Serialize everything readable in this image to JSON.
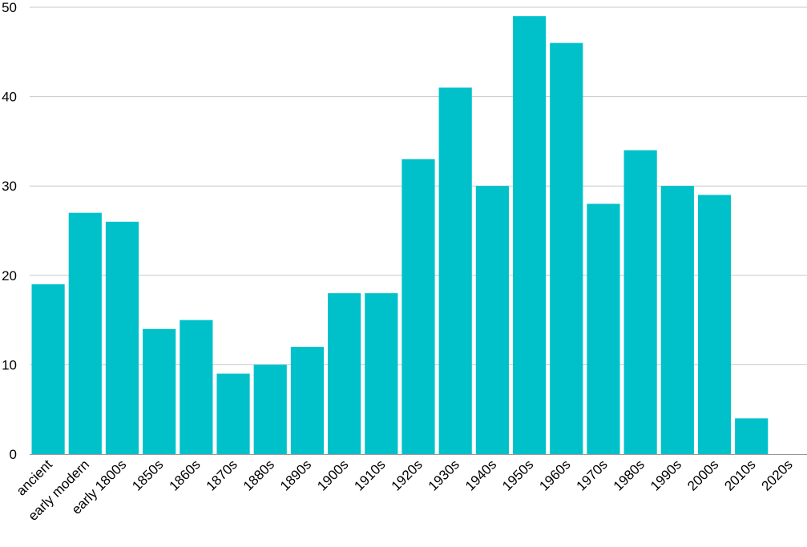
{
  "chart_data": {
    "type": "bar",
    "title": "",
    "xlabel": "",
    "ylabel": "",
    "ylim": [
      0,
      50
    ],
    "yticks": [
      0,
      10,
      20,
      30,
      40,
      50
    ],
    "grid": true,
    "bar_color": "#00C1CA",
    "categories": [
      "ancient",
      "early modern",
      "early 1800s",
      "1850s",
      "1860s",
      "1870s",
      "1880s",
      "1890s",
      "1900s",
      "1910s",
      "1920s",
      "1930s",
      "1940s",
      "1950s",
      "1960s",
      "1970s",
      "1980s",
      "1990s",
      "2000s",
      "2010s",
      "2020s"
    ],
    "values": [
      19,
      27,
      26,
      14,
      15,
      9,
      10,
      12,
      18,
      18,
      33,
      41,
      30,
      49,
      46,
      28,
      34,
      30,
      29,
      4,
      0
    ]
  }
}
